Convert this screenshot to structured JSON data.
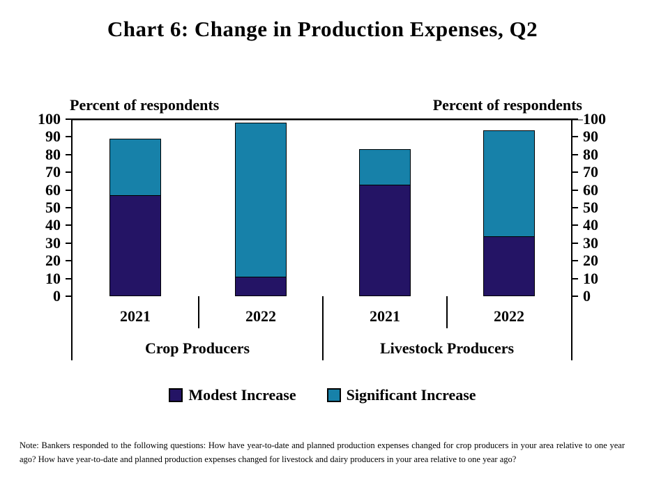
{
  "title": "Chart 6: Change in Production Expenses, Q2",
  "axis_headers": {
    "left": "Percent of respondents",
    "right": "Percent of respondents"
  },
  "note": "Note: Bankers responded to the following questions: How have year-to-date and planned production expenses changed for crop producers in your area relative to one year ago? How have year-to-date and planned production expenses changed for livestock and dairy producers in your area relative to one year ago?",
  "colors": {
    "modest_increase": "#241465",
    "significant_increase": "#1781A9",
    "bar_border": "#000000",
    "axis_line": "#000000",
    "zero_line": "#808080"
  },
  "chart_data": {
    "type": "bar",
    "stacked": true,
    "title": "Chart 6: Change in Production Expenses, Q2",
    "ylabel": "Percent of respondents",
    "ylim": [
      0,
      100
    ],
    "yticks": [
      0,
      10,
      20,
      30,
      40,
      50,
      60,
      70,
      80,
      90,
      100
    ],
    "grid": false,
    "legend_position": "bottom",
    "groups": [
      "Crop Producers",
      "Livestock Producers"
    ],
    "categories": [
      "2021",
      "2022",
      "2021",
      "2022"
    ],
    "category_group_index": [
      0,
      0,
      1,
      1
    ],
    "series": [
      {
        "name": "Modest Increase",
        "color": "#241465",
        "values": [
          57,
          11,
          63,
          34
        ]
      },
      {
        "name": "Significant Increase",
        "color": "#1781A9",
        "values": [
          32,
          87,
          20,
          60
        ]
      }
    ],
    "stack_totals": [
      89,
      98,
      83,
      94
    ]
  }
}
